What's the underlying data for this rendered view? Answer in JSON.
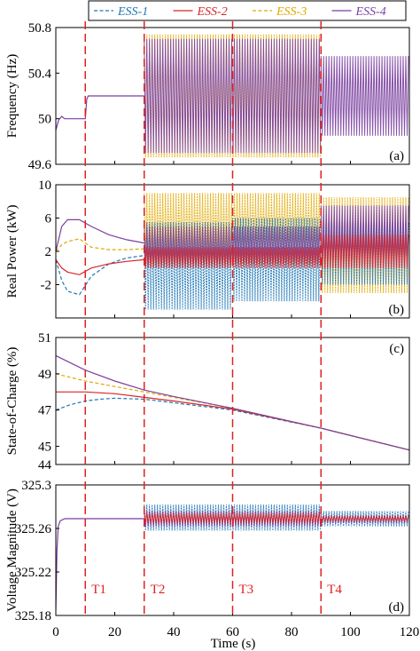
{
  "chart_data": {
    "type": "line",
    "legend": {
      "placement": "top",
      "entries": [
        {
          "name": "ESS-1",
          "color": "#1f77b4",
          "dash": "dashed"
        },
        {
          "name": "ESS-2",
          "color": "#d62728",
          "dash": "solid"
        },
        {
          "name": "ESS-3",
          "color": "#e0a800",
          "dash": "dashed"
        },
        {
          "name": "ESS-4",
          "color": "#7b3fa0",
          "dash": "solid"
        }
      ]
    },
    "x_axis": {
      "label": "Time (s)",
      "range": [
        0,
        120
      ],
      "ticks": [
        "0",
        "20",
        "40",
        "60",
        "80",
        "100",
        "120"
      ]
    },
    "event_lines": [
      {
        "label": "T1",
        "x": 10
      },
      {
        "label": "T2",
        "x": 30
      },
      {
        "label": "T3",
        "x": 60
      },
      {
        "label": "T4",
        "x": 90
      }
    ],
    "panels": [
      {
        "tag": "(a)",
        "ylabel": "Frequency  (Hz)",
        "ylim": [
          49.6,
          50.8
        ],
        "yticks": [
          "49.6",
          "50",
          "50.4",
          "50.8"
        ],
        "oscillation_bands": [
          {
            "series": "ESS-3",
            "from": 30,
            "to": 90,
            "lo": 49.66,
            "hi": 50.74
          },
          {
            "series": "ESS-4",
            "from": 30,
            "to": 90,
            "lo": 49.7,
            "hi": 50.7
          },
          {
            "series": "ESS-4",
            "from": 90,
            "to": 120,
            "lo": 49.85,
            "hi": 50.55
          }
        ],
        "series": [
          {
            "name": "ESS-4",
            "x": [
              0,
              1,
              2,
              3,
              10,
              10.5,
              11,
              30
            ],
            "y": [
              49.9,
              49.99,
              50.02,
              50.0,
              50.0,
              50.17,
              50.2,
              50.2
            ]
          }
        ]
      },
      {
        "tag": "(b)",
        "ylabel": "Real Power  (kW)",
        "ylim": [
          -6,
          10
        ],
        "yticks": [
          "-2",
          "2",
          "6",
          "10"
        ],
        "oscillation_bands": [
          {
            "series": "ESS-3",
            "from": 30,
            "to": 90,
            "lo": 0.5,
            "hi": 9
          },
          {
            "series": "ESS-3",
            "from": 90,
            "to": 120,
            "lo": -3,
            "hi": 8.5
          },
          {
            "series": "ESS-1",
            "from": 30,
            "to": 60,
            "lo": -5,
            "hi": 5.5
          },
          {
            "series": "ESS-1",
            "from": 60,
            "to": 90,
            "lo": -4,
            "hi": 6
          },
          {
            "series": "ESS-1",
            "from": 90,
            "to": 120,
            "lo": -2,
            "hi": 5.5
          },
          {
            "series": "ESS-4",
            "from": 30,
            "to": 90,
            "lo": 0.5,
            "hi": 5
          },
          {
            "series": "ESS-4",
            "from": 90,
            "to": 120,
            "lo": 0,
            "hi": 7.5
          },
          {
            "series": "ESS-2",
            "from": 30,
            "to": 90,
            "lo": 0,
            "hi": 2.5
          },
          {
            "series": "ESS-2",
            "from": 90,
            "to": 120,
            "lo": 0,
            "hi": 4
          }
        ],
        "series": [
          {
            "name": "ESS-1",
            "x": [
              0,
              2,
              4,
              8,
              12,
              18,
              24,
              30
            ],
            "y": [
              1,
              -1.5,
              -2.8,
              -3.2,
              -1,
              0.5,
              1.2,
              1.5
            ]
          },
          {
            "name": "ESS-2",
            "x": [
              0,
              2,
              4,
              8,
              12,
              18,
              24,
              30
            ],
            "y": [
              1,
              0,
              -0.5,
              -0.8,
              0,
              0.5,
              0.8,
              1
            ]
          },
          {
            "name": "ESS-3",
            "x": [
              0,
              2,
              4,
              8,
              12,
              18,
              24,
              30
            ],
            "y": [
              2,
              2.8,
              3.2,
              3.5,
              2.5,
              2.2,
              2.2,
              2.3
            ]
          },
          {
            "name": "ESS-4",
            "x": [
              0,
              2,
              4,
              8,
              12,
              18,
              24,
              30
            ],
            "y": [
              2,
              5,
              5.8,
              5.8,
              5,
              4,
              3.4,
              3
            ]
          }
        ]
      },
      {
        "tag": "(c)",
        "ylabel": "State-of-Charge  (%)",
        "ylim": [
          44,
          51
        ],
        "yticks": [
          "44",
          "45",
          "47",
          "49",
          "51"
        ],
        "series": [
          {
            "name": "ESS-1",
            "x": [
              0,
              5,
              10,
              15,
              20,
              30,
              40,
              60,
              90,
              120
            ],
            "y": [
              47.0,
              47.3,
              47.5,
              47.6,
              47.65,
              47.6,
              47.4,
              47.0,
              46.0,
              44.8
            ]
          },
          {
            "name": "ESS-2",
            "x": [
              0,
              10,
              20,
              30,
              40,
              60,
              90,
              120
            ],
            "y": [
              48.0,
              48.0,
              47.9,
              47.7,
              47.5,
              47.05,
              46.0,
              44.8
            ]
          },
          {
            "name": "ESS-3",
            "x": [
              0,
              10,
              20,
              30,
              40,
              60,
              90,
              120
            ],
            "y": [
              49.0,
              48.6,
              48.3,
              48.0,
              47.7,
              47.1,
              46.0,
              44.8
            ]
          },
          {
            "name": "ESS-4",
            "x": [
              0,
              10,
              20,
              30,
              40,
              60,
              90,
              120
            ],
            "y": [
              50.0,
              49.2,
              48.6,
              48.1,
              47.75,
              47.1,
              46.0,
              44.8
            ]
          }
        ]
      },
      {
        "tag": "(d)",
        "ylabel": "Voltage Magnitude  (V)",
        "ylim": [
          325.18,
          325.3
        ],
        "yticks": [
          "325.18",
          "325.22",
          "325.26",
          "325.3"
        ],
        "oscillation_bands": [
          {
            "series": "ESS-1",
            "from": 30,
            "to": 90,
            "lo": 325.258,
            "hi": 325.282
          },
          {
            "series": "ESS-1",
            "from": 90,
            "to": 120,
            "lo": 325.262,
            "hi": 325.276
          },
          {
            "series": "ESS-4",
            "from": 30,
            "to": 90,
            "lo": 325.262,
            "hi": 325.276
          },
          {
            "series": "ESS-4",
            "from": 90,
            "to": 120,
            "lo": 325.265,
            "hi": 325.272
          },
          {
            "series": "ESS-2",
            "from": 30,
            "to": 90,
            "lo": 325.265,
            "hi": 325.274
          },
          {
            "series": "ESS-2",
            "from": 90,
            "to": 120,
            "lo": 325.267,
            "hi": 325.271
          }
        ],
        "series": [
          {
            "name": "ESS-4",
            "x": [
              0,
              0.4,
              0.8,
              1.5,
              3,
              30
            ],
            "y": [
              325.185,
              325.24,
              325.262,
              325.267,
              325.269,
              325.269
            ]
          }
        ]
      }
    ]
  }
}
